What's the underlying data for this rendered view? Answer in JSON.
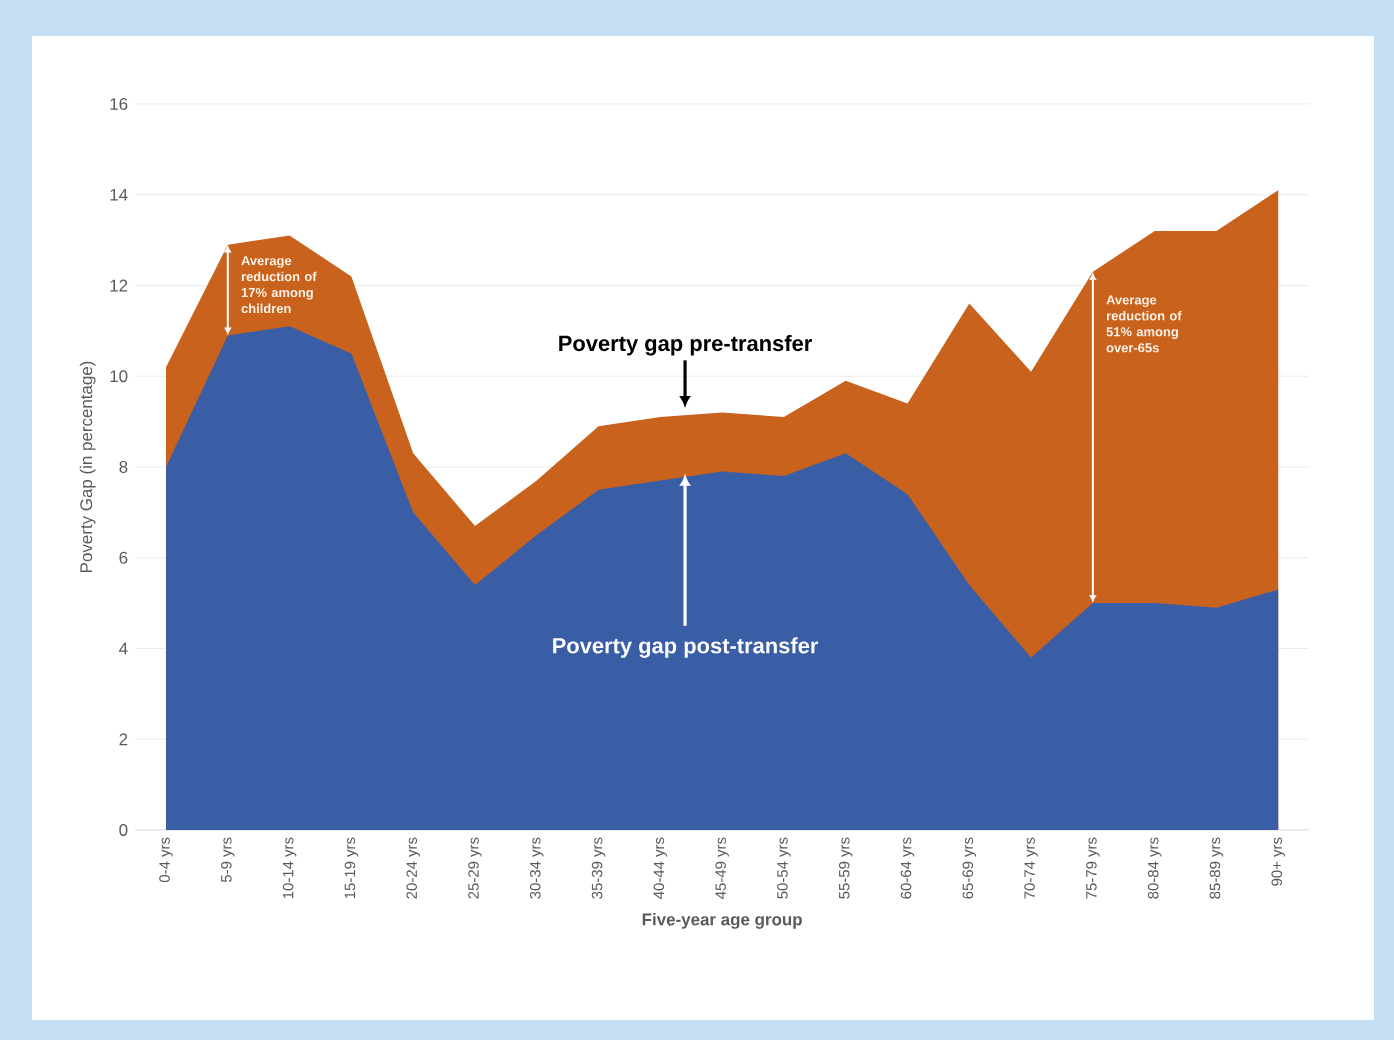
{
  "chart_data": {
    "type": "area",
    "xlabel": "Five-year age group",
    "ylabel": "Poverty Gap (in percentage)",
    "categories": [
      "0-4 yrs",
      "5-9 yrs",
      "10-14 yrs",
      "15-19 yrs",
      "20-24 yrs",
      "25-29 yrs",
      "30-34 yrs",
      "35-39 yrs",
      "40-44 yrs",
      "45-49 yrs",
      "50-54 yrs",
      "55-59 yrs",
      "60-64 yrs",
      "65-69 yrs",
      "70-74 yrs",
      "75-79 yrs",
      "80-84 yrs",
      "85-89 yrs",
      "90+ yrs"
    ],
    "series": [
      {
        "name": "Poverty gap pre-transfer",
        "color": "#c9621c",
        "values": [
          10.2,
          12.9,
          13.1,
          12.2,
          8.3,
          6.7,
          7.7,
          8.9,
          9.1,
          9.2,
          9.1,
          9.9,
          9.4,
          11.6,
          10.1,
          12.3,
          13.2,
          13.2,
          14.1
        ]
      },
      {
        "name": "Poverty gap post-transfer",
        "color": "#3a5ea6",
        "values": [
          8.0,
          10.9,
          11.1,
          10.5,
          7.0,
          5.4,
          6.5,
          7.5,
          7.7,
          7.9,
          7.8,
          8.3,
          7.4,
          5.4,
          3.8,
          5.0,
          5.0,
          4.9,
          5.3
        ]
      }
    ],
    "ylim": [
      0,
      16
    ],
    "yticks": [
      0,
      2,
      4,
      6,
      8,
      10,
      12,
      14,
      16
    ],
    "grid": "y",
    "annotations": [
      {
        "text": "Average reduction of 17% among children",
        "x": "5-9 yrs",
        "y": 12.9
      },
      {
        "text": "Average reduction of 51% among over-65s",
        "x": "75-79 yrs",
        "y": 12.3
      }
    ]
  }
}
